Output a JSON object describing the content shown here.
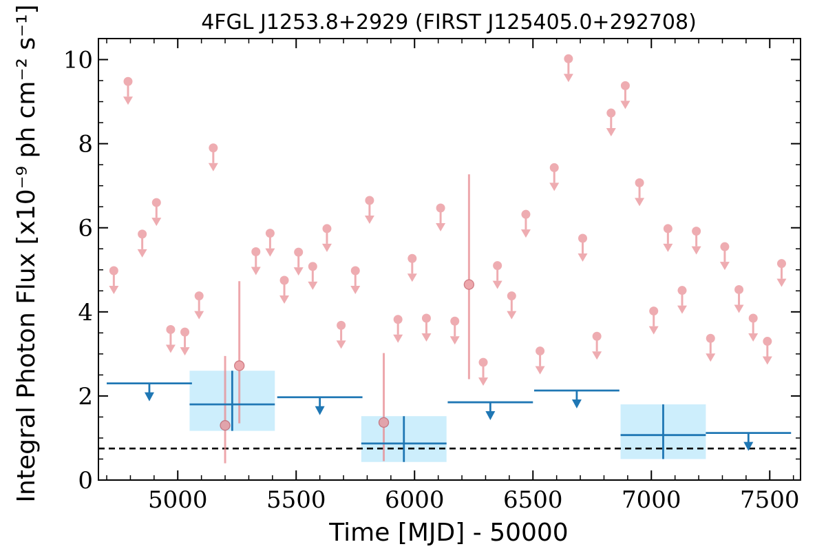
{
  "chart_data": {
    "type": "scatter",
    "title": "4FGL J1253.8+2929 (FIRST J125405.0+292708)",
    "xlabel": "Time [MJD] - 50000",
    "ylabel": "Integral Photon Flux [x10⁻⁹ ph cm⁻² s⁻¹]",
    "xlim": [
      4665,
      7630
    ],
    "ylim": [
      0,
      10.5
    ],
    "x_ticks": [
      5000,
      5500,
      6000,
      6500,
      7000,
      7500
    ],
    "y_ticks": [
      0,
      2,
      4,
      6,
      8,
      10
    ],
    "x_tick_labels": [
      "5000",
      "5500",
      "6000",
      "6500",
      "7000",
      "7500"
    ],
    "y_tick_labels": [
      "0",
      "2",
      "4",
      "6",
      "8",
      "10"
    ],
    "reference_level": 0.75,
    "colors": {
      "short_bins": "#e88a91",
      "long_bins": "#1f77b4",
      "long_bin_box": "#cdeefc",
      "reference": "#000000"
    },
    "short_bins": {
      "upper_limits": [
        {
          "x": 4730,
          "y": 4.98
        },
        {
          "x": 4790,
          "y": 9.48
        },
        {
          "x": 4850,
          "y": 5.85
        },
        {
          "x": 4910,
          "y": 6.6
        },
        {
          "x": 4970,
          "y": 3.58
        },
        {
          "x": 5030,
          "y": 3.52
        },
        {
          "x": 5090,
          "y": 4.38
        },
        {
          "x": 5150,
          "y": 7.9
        },
        {
          "x": 5330,
          "y": 5.43
        },
        {
          "x": 5390,
          "y": 5.87
        },
        {
          "x": 5450,
          "y": 4.75
        },
        {
          "x": 5510,
          "y": 5.42
        },
        {
          "x": 5570,
          "y": 5.08
        },
        {
          "x": 5630,
          "y": 5.98
        },
        {
          "x": 5690,
          "y": 3.68
        },
        {
          "x": 5750,
          "y": 4.98
        },
        {
          "x": 5810,
          "y": 6.65
        },
        {
          "x": 5930,
          "y": 3.82
        },
        {
          "x": 5990,
          "y": 5.27
        },
        {
          "x": 6050,
          "y": 3.85
        },
        {
          "x": 6110,
          "y": 6.47
        },
        {
          "x": 6170,
          "y": 3.78
        },
        {
          "x": 6290,
          "y": 2.8
        },
        {
          "x": 6350,
          "y": 5.1
        },
        {
          "x": 6410,
          "y": 4.38
        },
        {
          "x": 6470,
          "y": 6.32
        },
        {
          "x": 6530,
          "y": 3.07
        },
        {
          "x": 6590,
          "y": 7.43
        },
        {
          "x": 6650,
          "y": 10.02
        },
        {
          "x": 6710,
          "y": 5.75
        },
        {
          "x": 6770,
          "y": 3.42
        },
        {
          "x": 6830,
          "y": 8.73
        },
        {
          "x": 6890,
          "y": 9.38
        },
        {
          "x": 6950,
          "y": 7.07
        },
        {
          "x": 7010,
          "y": 4.02
        },
        {
          "x": 7070,
          "y": 5.98
        },
        {
          "x": 7130,
          "y": 4.51
        },
        {
          "x": 7190,
          "y": 5.92
        },
        {
          "x": 7250,
          "y": 3.37
        },
        {
          "x": 7310,
          "y": 5.55
        },
        {
          "x": 7370,
          "y": 4.53
        },
        {
          "x": 7430,
          "y": 3.85
        },
        {
          "x": 7490,
          "y": 3.3
        },
        {
          "x": 7550,
          "y": 5.15
        }
      ],
      "detections": [
        {
          "x": 5200,
          "y": 1.3,
          "y_low": 0.4,
          "y_high": 2.95
        },
        {
          "x": 5260,
          "y": 2.72,
          "y_low": 1.35,
          "y_high": 4.73
        },
        {
          "x": 5870,
          "y": 1.37,
          "y_low": 0.45,
          "y_high": 3.02
        },
        {
          "x": 6230,
          "y": 4.65,
          "y_low": 2.4,
          "y_high": 7.27
        }
      ]
    },
    "long_bins": {
      "upper_limits": [
        {
          "x_start": 4700,
          "x_end": 5060,
          "y": 2.3
        },
        {
          "x_start": 5420,
          "x_end": 5780,
          "y": 1.97
        },
        {
          "x_start": 6140,
          "x_end": 6500,
          "y": 1.85
        },
        {
          "x_start": 6505,
          "x_end": 6865,
          "y": 2.13
        },
        {
          "x_start": 7230,
          "x_end": 7590,
          "y": 1.12
        }
      ],
      "detections": [
        {
          "x_start": 5050,
          "x_end": 5410,
          "x": 5230,
          "y": 1.8,
          "y_low": 1.17,
          "y_high": 2.6
        },
        {
          "x_start": 5775,
          "x_end": 6135,
          "x": 5955,
          "y": 0.87,
          "y_low": 0.43,
          "y_high": 1.52
        },
        {
          "x_start": 6870,
          "x_end": 7230,
          "x": 7050,
          "y": 1.07,
          "y_low": 0.5,
          "y_high": 1.8
        }
      ]
    }
  }
}
